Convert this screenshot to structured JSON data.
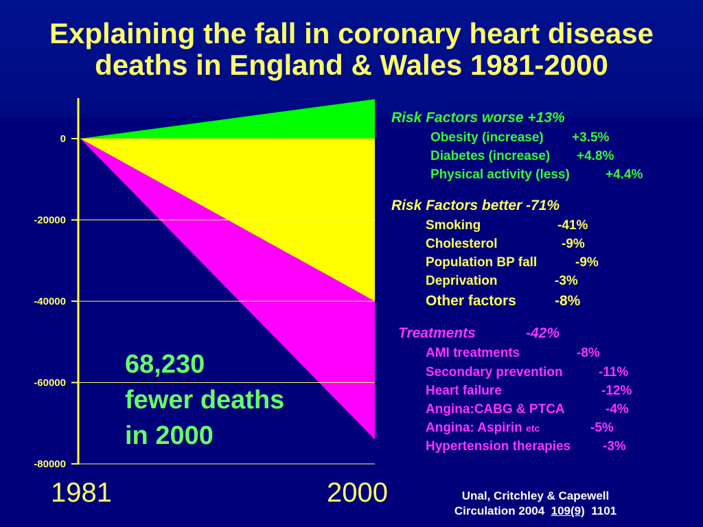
{
  "title_line1": "Explaining the fall in coronary heart disease",
  "title_line2": "deaths in England & Wales 1981-2000",
  "chart_data": {
    "type": "area",
    "x": [
      1981,
      2000
    ],
    "x_tick_labels": [
      "1981",
      "2000"
    ],
    "y_tick_labels": [
      "0",
      "-20000",
      "-40000",
      "-60000",
      "-80000"
    ],
    "ylim": [
      -80000,
      10000
    ],
    "series": [
      {
        "values": [
          0,
          9700
        ],
        "color": "#00ff00"
      },
      {
        "values": [
          0,
          -40000
        ],
        "color": "#ffff00"
      },
      {
        "values": [
          0,
          -74000
        ],
        "color": "#ff00ff"
      }
    ],
    "annotation": [
      "68,230",
      "fewer deaths",
      "in 2000"
    ]
  },
  "legend": {
    "worse": {
      "header": "Risk Factors worse +13%",
      "items": [
        {
          "label": "Obesity (increase)",
          "value": "+3.5%"
        },
        {
          "label": "Diabetes (increase)",
          "value": "+4.8%"
        },
        {
          "label": "Physical activity (less)",
          "value": "+4.4%"
        }
      ]
    },
    "better": {
      "header": "Risk Factors better -71%",
      "items": [
        {
          "label": "Smoking",
          "value": "-41%"
        },
        {
          "label": "Cholesterol",
          "value": "-9%"
        },
        {
          "label": "Population BP fall",
          "value": "-9%"
        },
        {
          "label": "Deprivation",
          "value": "-3%"
        },
        {
          "label": "Other factors",
          "value": "-8%"
        }
      ]
    },
    "treatments": {
      "header": "Treatments",
      "header_value": "-42%",
      "items": [
        {
          "label": "AMI treatments",
          "value": "-8%"
        },
        {
          "label": "Secondary prevention",
          "value": "-11%"
        },
        {
          "label": "Heart failure",
          "value": "-12%"
        },
        {
          "label": "Angina:CABG & PTCA",
          "value": "-4%"
        },
        {
          "label": "Angina: Aspirin",
          "small": "etc",
          "value": "-5%"
        },
        {
          "label": "Hypertension therapies",
          "value": "-3%"
        }
      ]
    }
  },
  "citation": {
    "line1": "Unal, Critchley & Capewell",
    "line2_prefix": "Circulation 2004",
    "line2_volume": "109(9)",
    "line2_page": "1101"
  },
  "colors": {
    "background": "#00007a",
    "title": "#ffff66",
    "green": "#33ff33",
    "yellow": "#ffff55",
    "magenta": "#ff33ff"
  }
}
